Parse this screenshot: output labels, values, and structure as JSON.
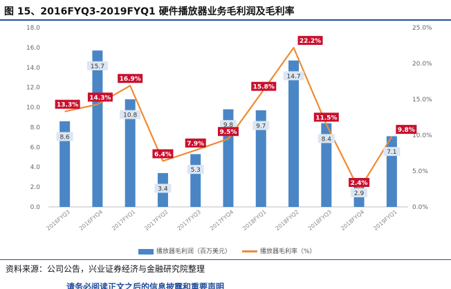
{
  "page": {
    "title": "图 15、2016FYQ3-2019FYQ1 硬件播放器业务毛利润及毛利率",
    "source": "资料来源：公司公告，兴业证券经济与金融研究院整理",
    "footer": "请务必阅读正文之后的信息披露和重要声明"
  },
  "chart_data": {
    "type": "bar",
    "categories": [
      "2016FYQ3",
      "2016FYQ4",
      "2017FYQ1",
      "2017FYQ2",
      "2017FYQ3",
      "2017FYQ4",
      "2018FYQ1",
      "2018FYQ2",
      "2018FYQ3",
      "2018FYQ4",
      "2019FYQ1"
    ],
    "series": [
      {
        "name": "播放器毛利润（百万美元）",
        "kind": "bar",
        "axis": "left",
        "values": [
          8.6,
          15.7,
          10.8,
          3.4,
          5.3,
          9.8,
          9.7,
          14.7,
          8.4,
          2.9,
          7.1
        ],
        "labels": [
          "8.6",
          "15.7",
          "10.8",
          "3.4",
          "5.3",
          "9.8",
          "9.7",
          "14.7",
          "8.4",
          "2.9",
          "7.1"
        ],
        "color": "#4a86c6"
      },
      {
        "name": "播放器毛利率（%）",
        "kind": "line",
        "axis": "right",
        "values": [
          13.3,
          14.3,
          16.9,
          6.4,
          7.9,
          9.5,
          15.8,
          22.2,
          11.5,
          2.4,
          9.8
        ],
        "labels": [
          "13.3%",
          "14.3%",
          "16.9%",
          "6.4%",
          "7.9%",
          "9.5%",
          "15.8%",
          "22.2%",
          "11.5%",
          "2.4%",
          "9.8%"
        ],
        "color": "#f08a30"
      }
    ],
    "y_left": {
      "ylim": [
        0,
        18
      ],
      "ticks": [
        "0.0",
        "2.0",
        "4.0",
        "6.0",
        "8.0",
        "10.0",
        "12.0",
        "14.0",
        "16.0",
        "18.0"
      ]
    },
    "y_right": {
      "ylim": [
        0,
        25
      ],
      "ticks": [
        "0.0%",
        "5.0%",
        "10.0%",
        "15.0%",
        "20.0%",
        "25.0%"
      ]
    },
    "xlabel": "",
    "ylabel": "",
    "grid": false,
    "legend": "bottom-center",
    "colors": {
      "bar": "#4a86c6",
      "line": "#f08a30",
      "line_label_bg": "#c8102e",
      "bar_label_bg": "#dce6f2"
    }
  }
}
